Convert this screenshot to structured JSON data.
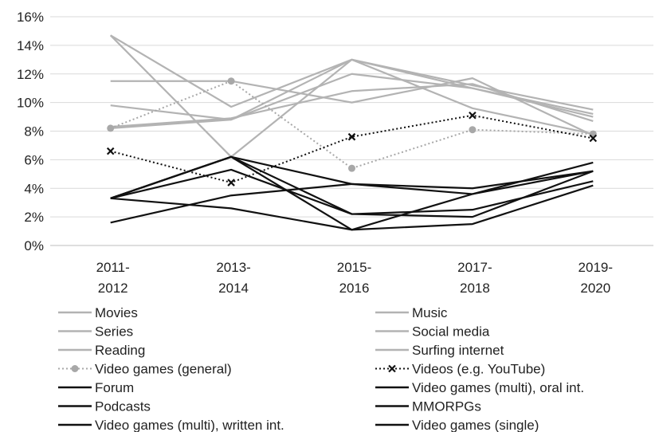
{
  "chart_data": {
    "type": "line",
    "categories": [
      [
        "2011-",
        "2012"
      ],
      [
        "2013-",
        "2014"
      ],
      [
        "2015-",
        "2016"
      ],
      [
        "2017-",
        "2018"
      ],
      [
        "2019-",
        "2020"
      ]
    ],
    "yticks": [
      "0%",
      "2%",
      "4%",
      "6%",
      "8%",
      "10%",
      "12%",
      "14%",
      "16%"
    ],
    "ylim": [
      0,
      16
    ],
    "grid": "horizontal",
    "legend_position": "bottom",
    "series": [
      {
        "name": "Movies",
        "values": [
          14.7,
          6.2,
          13.0,
          11.0,
          9.0
        ],
        "color": "#b3b3b3",
        "style": "solid"
      },
      {
        "name": "Music",
        "values": [
          11.5,
          11.5,
          10.0,
          11.7,
          7.7
        ],
        "color": "#b3b3b3",
        "style": "solid"
      },
      {
        "name": "Series",
        "values": [
          9.8,
          8.8,
          13.0,
          11.2,
          9.5
        ],
        "color": "#b3b3b3",
        "style": "solid"
      },
      {
        "name": "Social media",
        "values": [
          8.2,
          8.8,
          12.0,
          11.0,
          9.2
        ],
        "color": "#b3b3b3",
        "style": "solid"
      },
      {
        "name": "Reading",
        "values": [
          14.7,
          9.7,
          13.0,
          9.6,
          7.8
        ],
        "color": "#b3b3b3",
        "style": "solid"
      },
      {
        "name": "Surfing internet",
        "values": [
          8.3,
          8.9,
          10.8,
          11.3,
          8.7
        ],
        "color": "#b3b3b3",
        "style": "solid"
      },
      {
        "name": "Video games (general)",
        "values": [
          8.2,
          11.5,
          5.4,
          8.1,
          7.8
        ],
        "color": "#a8a8a8",
        "style": "dotted",
        "marker": "circle"
      },
      {
        "name": "Videos (e.g. YouTube)",
        "values": [
          6.6,
          4.4,
          7.6,
          9.1,
          7.5
        ],
        "color": "#111111",
        "style": "dotted",
        "marker": "x"
      },
      {
        "name": "Forum",
        "values": [
          3.3,
          6.2,
          4.3,
          3.6,
          5.2
        ],
        "color": "#111111",
        "style": "solid"
      },
      {
        "name": "Video games (multi), oral int.",
        "values": [
          1.6,
          3.5,
          4.3,
          4.0,
          5.2
        ],
        "color": "#111111",
        "style": "solid"
      },
      {
        "name": "Podcasts",
        "values": [
          3.3,
          2.6,
          1.1,
          1.5,
          4.2
        ],
        "color": "#111111",
        "style": "solid"
      },
      {
        "name": "MMORPGs",
        "values": [
          3.3,
          5.3,
          2.2,
          2.0,
          5.2
        ],
        "color": "#111111",
        "style": "solid"
      },
      {
        "name": "Video games (multi), written int.",
        "values": [
          3.3,
          6.2,
          2.2,
          2.5,
          4.5
        ],
        "color": "#111111",
        "style": "solid"
      },
      {
        "name": "Video games (single)",
        "values": [
          3.3,
          6.2,
          1.1,
          3.6,
          5.8
        ],
        "color": "#111111",
        "style": "solid"
      }
    ]
  }
}
